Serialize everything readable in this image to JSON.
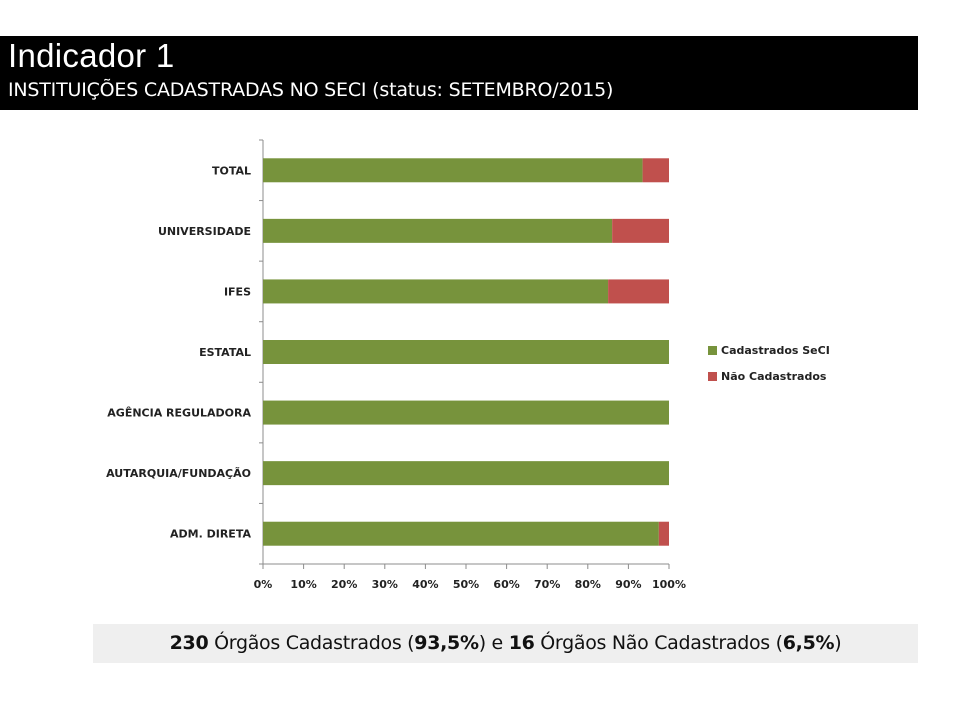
{
  "header": {
    "title": "Indicador 1",
    "subtitle": "INSTITUIÇÕES CADASTRADAS NO SECI (status: SETEMBRO/2015)"
  },
  "colors": {
    "cadastrados": "#77933c",
    "nao_cadastrados": "#c0504d",
    "header_bg": "#000000",
    "summary_bg": "#efefef"
  },
  "chart_data": {
    "type": "bar",
    "orientation": "horizontal",
    "stacked": true,
    "title": "",
    "xlabel": "",
    "ylabel": "",
    "categories": [
      "TOTAL",
      "UNIVERSIDADE",
      "IFES",
      "ESTATAL",
      "AGÊNCIA REGULADORA",
      "AUTARQUIA/FUNDAÇÃO",
      "ADM. DIRETA"
    ],
    "series": [
      {
        "name": "Cadastrados SeCI",
        "values": [
          93.5,
          86,
          85,
          100,
          100,
          100,
          97.5
        ]
      },
      {
        "name": "Não Cadastrados",
        "values": [
          6.5,
          14,
          15,
          0,
          0,
          0,
          2.5
        ]
      }
    ],
    "xlim": [
      0,
      100
    ],
    "xticks": [
      "0%",
      "10%",
      "20%",
      "30%",
      "40%",
      "50%",
      "60%",
      "70%",
      "80%",
      "90%",
      "100%"
    ],
    "grid": false,
    "legend": "right"
  },
  "summary": {
    "registered_count": "230",
    "registered_text": "Órgãos Cadastrados (",
    "registered_pct": "93,5%",
    "connector": ")  e  ",
    "unregistered_count": "16",
    "unregistered_text": "Órgãos Não Cadastrados (",
    "unregistered_pct": "6,5%",
    "closing": ")"
  }
}
